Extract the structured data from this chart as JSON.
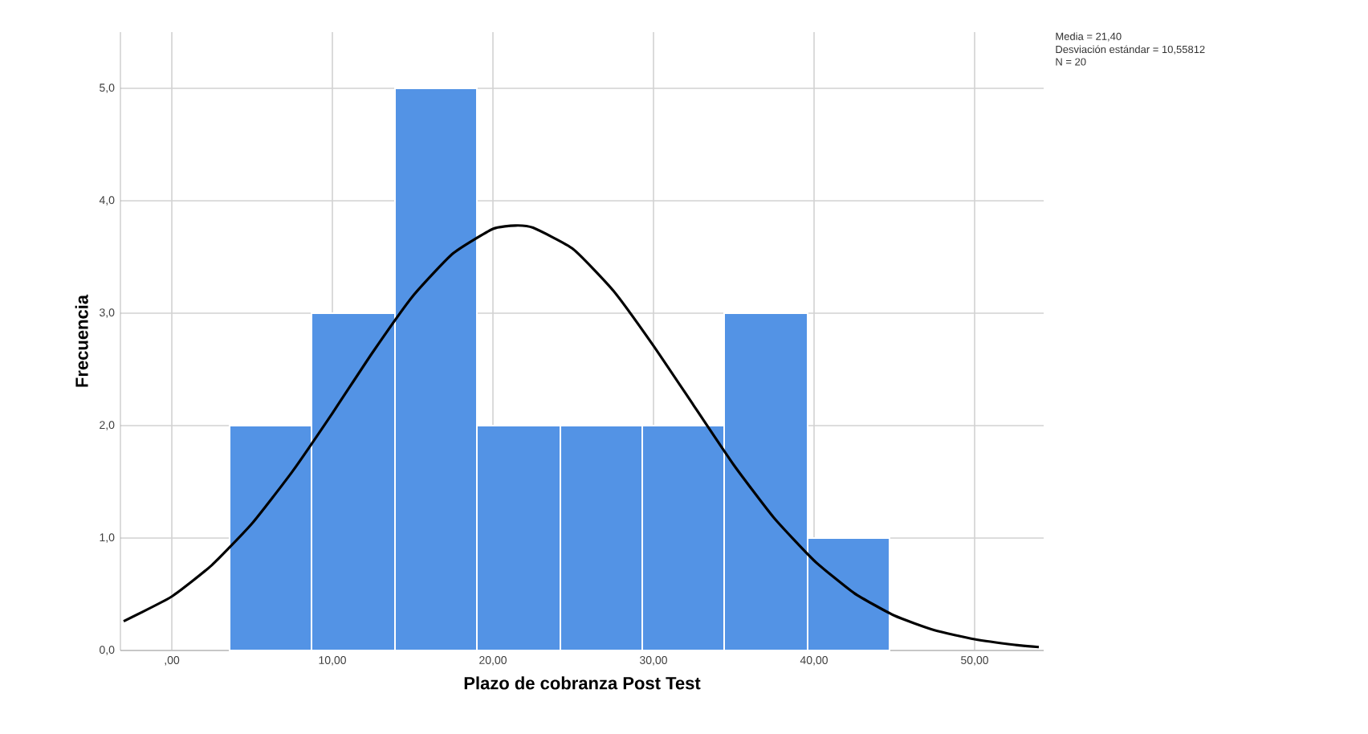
{
  "chart_data": {
    "type": "histogram",
    "xlabel": "Plazo de cobranza Post Test",
    "ylabel": "Frecuencia",
    "annotations": [
      "Media = 21,40",
      "Desviación estándar = 10,55812",
      "N = 20"
    ],
    "bins": [
      3.6,
      8.7,
      13.9,
      19.0,
      24.2,
      29.3,
      34.4,
      39.6,
      44.7
    ],
    "values": [
      2,
      3,
      5,
      2,
      2,
      2,
      3,
      1
    ],
    "color": "#5393e5",
    "series": [
      {
        "type": "line",
        "color": "#000000",
        "x": [
          -3,
          0,
          2.5,
          5,
          7.5,
          10,
          12.5,
          15,
          17.5,
          20,
          21.4,
          22.5,
          25,
          27.5,
          30,
          32.5,
          35,
          37.5,
          40,
          42.5,
          45,
          47.5,
          50,
          52.5,
          54
        ],
        "values": [
          0.26,
          0.48,
          0.76,
          1.13,
          1.59,
          2.11,
          2.65,
          3.15,
          3.53,
          3.75,
          3.78,
          3.76,
          3.57,
          3.2,
          2.71,
          2.18,
          1.65,
          1.18,
          0.8,
          0.51,
          0.31,
          0.18,
          0.1,
          0.05,
          0.03
        ]
      }
    ],
    "xlim": [
      -3.2,
      54.3
    ],
    "ylim": [
      0,
      5.5
    ],
    "xticks": [
      {
        "value": 0,
        "label": ",00"
      },
      {
        "value": 10,
        "label": "10,00"
      },
      {
        "value": 20,
        "label": "20,00"
      },
      {
        "value": 30,
        "label": "30,00"
      },
      {
        "value": 40,
        "label": "40,00"
      },
      {
        "value": 50,
        "label": "50,00"
      }
    ],
    "yticks": [
      {
        "value": 0,
        "label": "0,0"
      },
      {
        "value": 1,
        "label": "1,0"
      },
      {
        "value": 2,
        "label": "2,0"
      },
      {
        "value": 3,
        "label": "3,0"
      },
      {
        "value": 4,
        "label": "4,0"
      },
      {
        "value": 5,
        "label": "5,0"
      }
    ],
    "grid": true
  }
}
